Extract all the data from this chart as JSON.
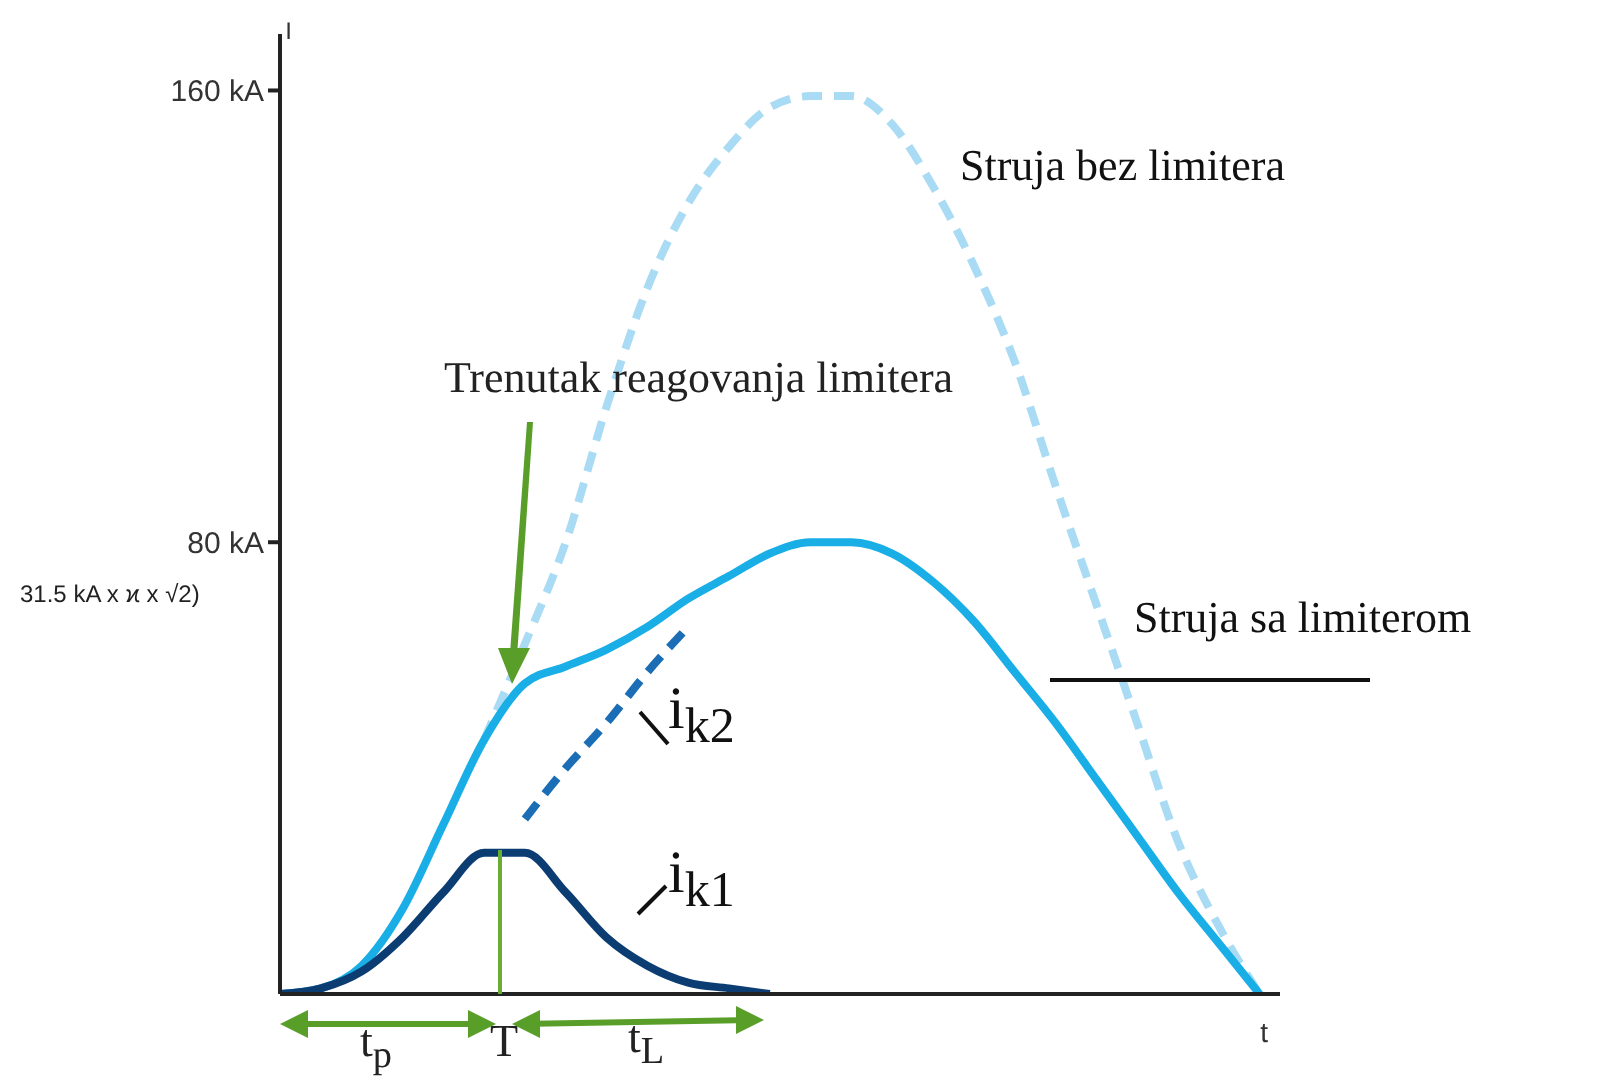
{
  "chart_data": {
    "type": "line",
    "ylabel": "I",
    "xlabel": "t",
    "categories": [
      null,
      null,
      null,
      null,
      null,
      null,
      null,
      null,
      null,
      null,
      null,
      null,
      null,
      null,
      null,
      null,
      null,
      null,
      null,
      null,
      null,
      null,
      null,
      null,
      null
    ],
    "series": [
      {
        "name": "Struja bez limitera",
        "color": "#a9dcf4",
        "line_style": "dashed",
        "values": [
          null,
          null,
          null,
          null,
          null,
          45,
          62,
          80,
          104,
          125,
          140,
          150,
          157,
          159,
          159,
          154,
          143,
          129,
          112,
          90,
          69,
          48,
          27,
          12,
          0
        ]
      },
      {
        "name": "Struja sa limiterom",
        "color": "#1aaee6",
        "line_style": "solid",
        "values": [
          0,
          1,
          5,
          15,
          30,
          45,
          55,
          58,
          61,
          65,
          70,
          74,
          78,
          80,
          80,
          78,
          73,
          66,
          57,
          48,
          38,
          28,
          18,
          9,
          0
        ]
      },
      {
        "name": "i$_{k2}$",
        "color": "#1b6db5",
        "line_style": "dashed",
        "values": [
          null,
          null,
          null,
          null,
          null,
          null,
          31,
          40,
          48,
          57,
          65,
          null,
          null,
          null,
          null,
          null,
          null,
          null,
          null,
          null,
          null,
          null,
          null,
          null,
          null
        ]
      },
      {
        "name": "i$_{k1}$",
        "color": "#0b3d73",
        "line_style": "solid",
        "values": [
          0,
          1,
          4,
          10,
          18,
          25,
          25,
          18,
          10,
          5,
          2,
          1,
          0,
          null,
          null,
          null,
          null,
          null,
          null,
          null,
          null,
          null,
          null,
          null,
          null
        ]
      }
    ],
    "ylim": [
      0,
      170
    ],
    "yticks": [
      {
        "value": 80,
        "label": "80 kA"
      },
      {
        "value": 160,
        "label": "160 kA"
      }
    ],
    "tick_labels": "y",
    "marker": "none",
    "annotations": [
      "Trenutak reagovanja limitera",
      "31.5 kA x ϰ x √2)",
      "t$_{p}$",
      "T",
      "t$_{L}$"
    ]
  }
}
